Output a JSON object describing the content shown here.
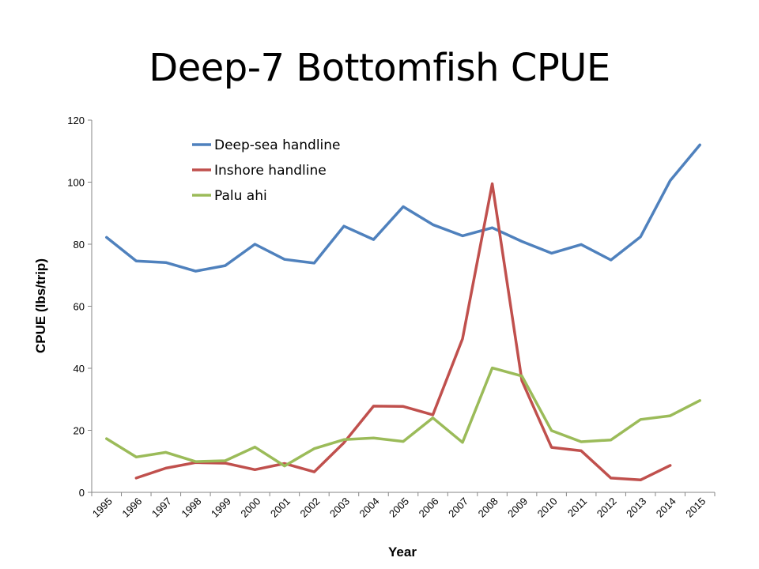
{
  "slide": {
    "title": "Deep-7 Bottomfish CPUE"
  },
  "chart_data": {
    "type": "line",
    "title": "Deep-7 Bottomfish CPUE",
    "xlabel": "Year",
    "ylabel": "CPUE (lbs/trip)",
    "ylim": [
      0,
      120
    ],
    "yticks": [
      0,
      20,
      40,
      60,
      80,
      100,
      120
    ],
    "categories": [
      "1995",
      "1996",
      "1997",
      "1998",
      "1999",
      "2000",
      "2001",
      "2002",
      "2003",
      "2004",
      "2005",
      "2006",
      "2007",
      "2008",
      "2009",
      "2010",
      "2011",
      "2012",
      "2013",
      "2014",
      "2015"
    ],
    "grid": false,
    "legend_position": "top-left",
    "series": [
      {
        "name": "Deep-sea handline",
        "color": "#4f81bd",
        "values": [
          82.2,
          74.6,
          74.1,
          71.3,
          73.1,
          80.0,
          75.1,
          73.9,
          85.8,
          81.5,
          92.1,
          86.3,
          82.7,
          85.3,
          80.9,
          77.1,
          79.9,
          74.9,
          82.4,
          100.5,
          112.0
        ]
      },
      {
        "name": "Inshore handline",
        "color": "#c0504d",
        "values": [
          null,
          4.6,
          7.8,
          9.6,
          9.4,
          7.3,
          9.3,
          6.6,
          16.0,
          27.8,
          27.7,
          25.0,
          49.5,
          99.5,
          36.0,
          14.5,
          13.4,
          4.6,
          4.0,
          8.7,
          null
        ]
      },
      {
        "name": "Palu ahi",
        "color": "#9bbb59",
        "values": [
          17.3,
          11.4,
          12.9,
          9.9,
          10.2,
          14.6,
          8.5,
          14.1,
          17.0,
          17.5,
          16.4,
          24.0,
          16.1,
          40.1,
          37.5,
          19.9,
          16.3,
          16.9,
          23.5,
          24.7,
          29.6
        ]
      }
    ]
  }
}
